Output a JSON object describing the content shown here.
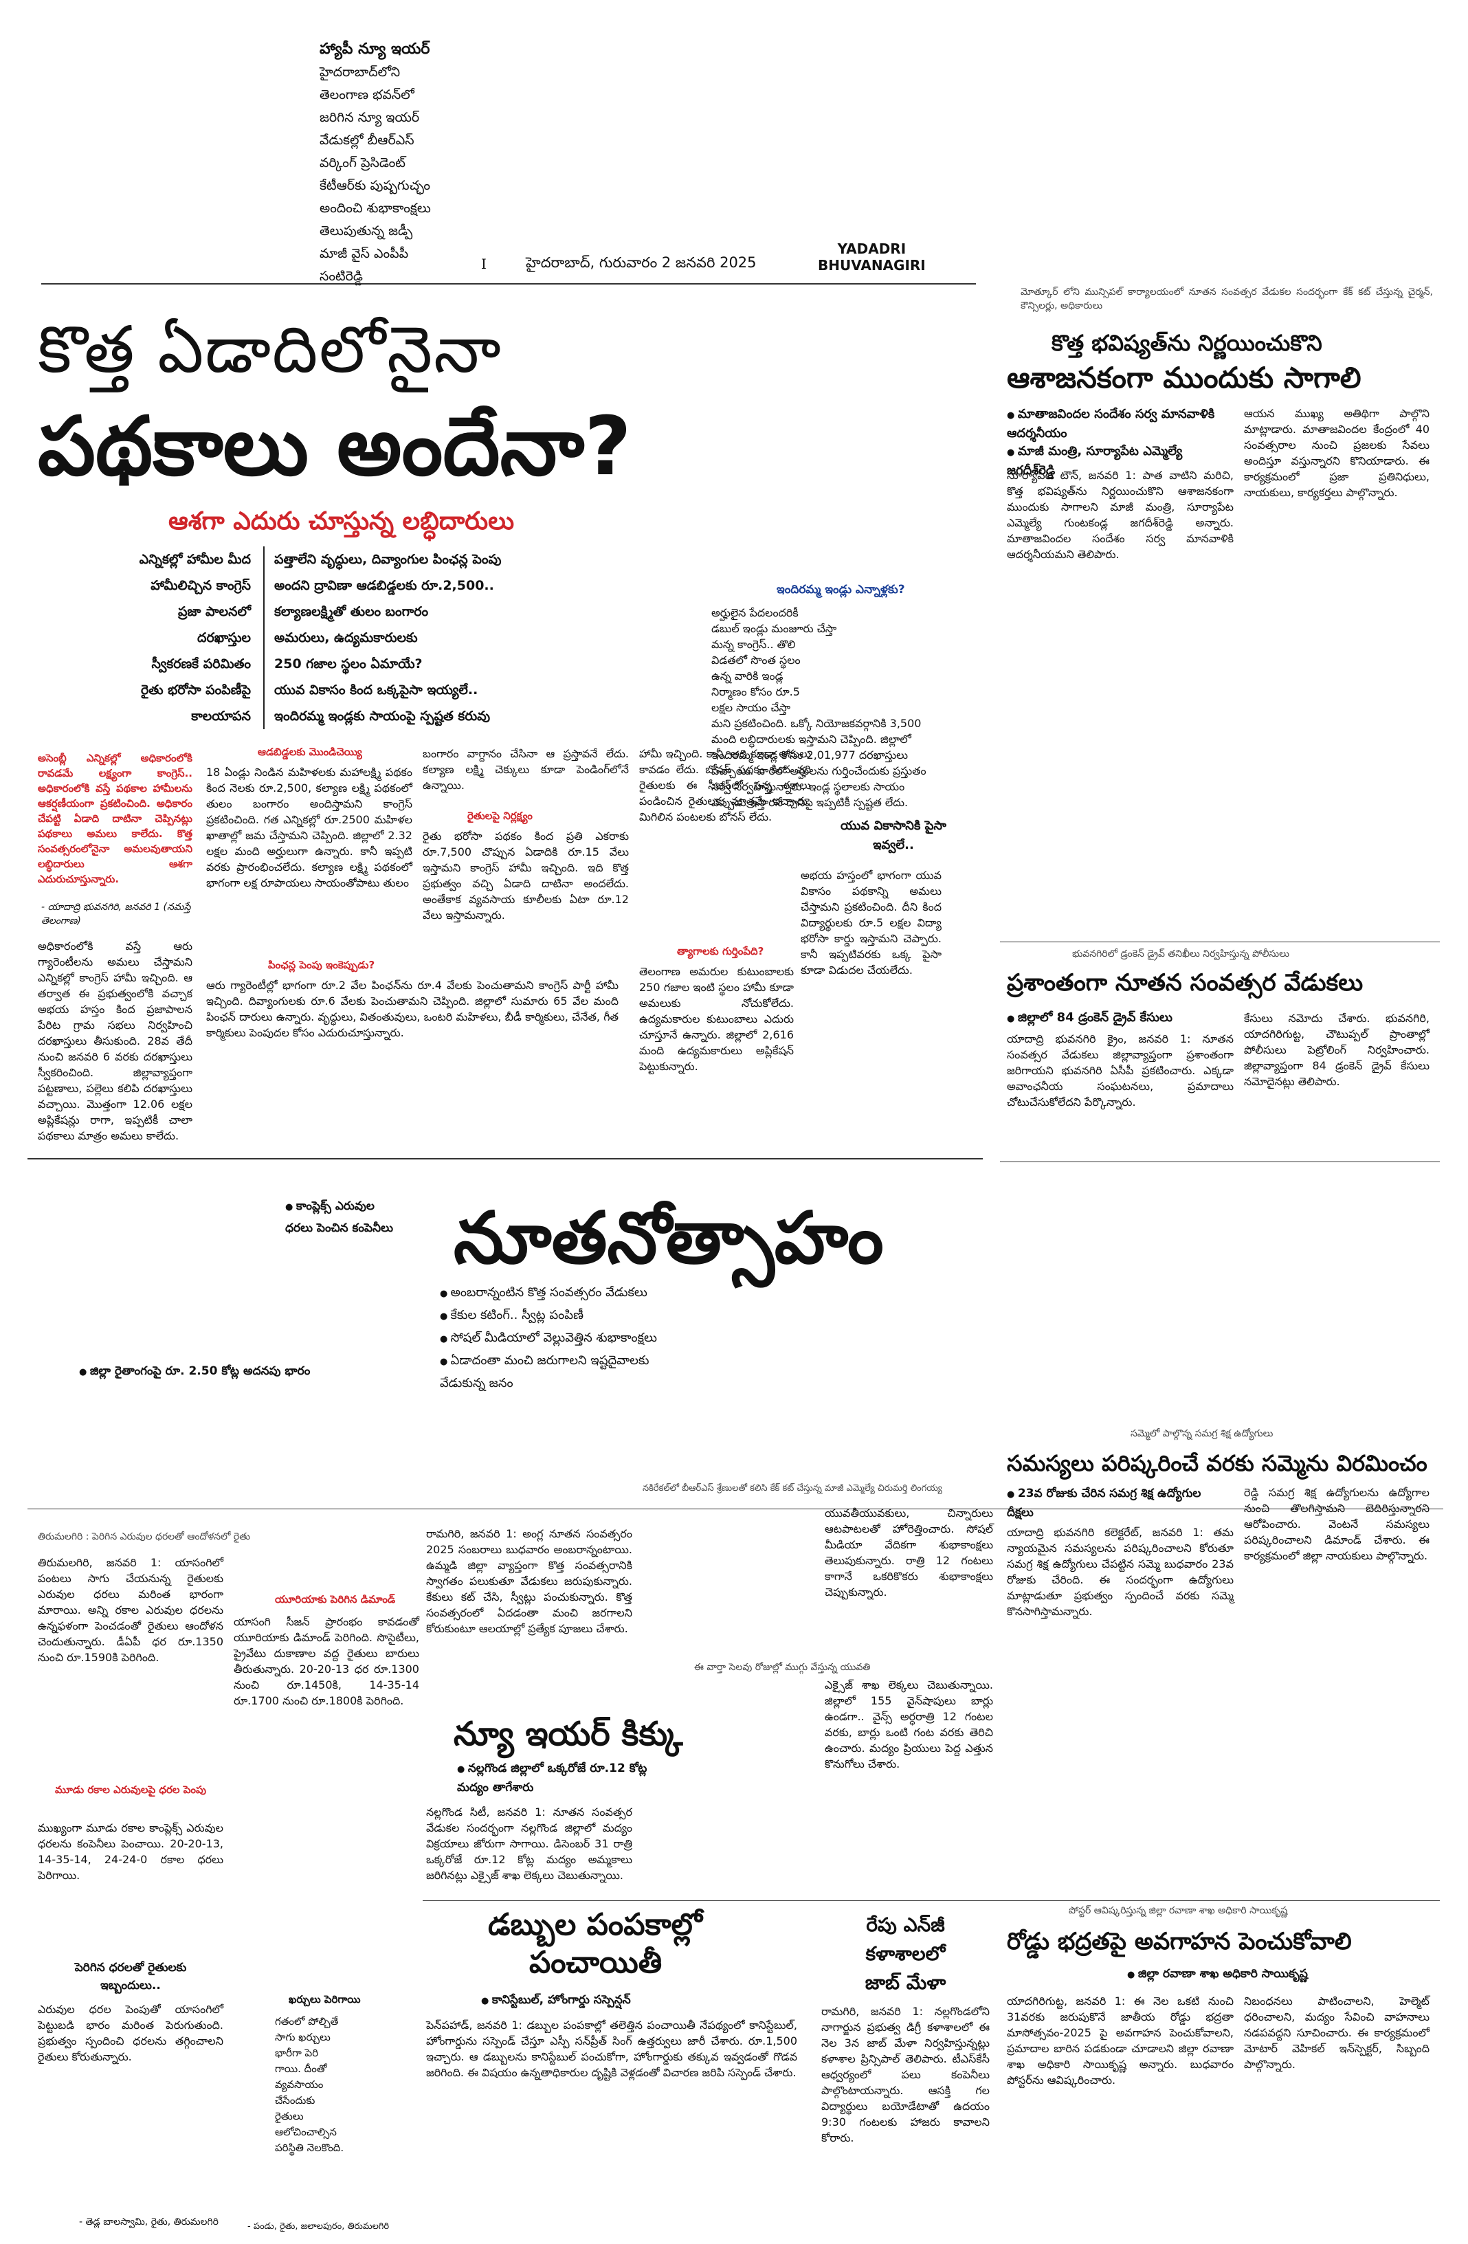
{
  "masthead": {
    "brief_title": "హ్యాపీ న్యూ ఇయర్",
    "brief_lines": [
      "హైదరాబాద్‌లోని",
      "తెలంగాణ భవన్‌లో",
      "జరిగిన న్యూ ఇయర్",
      "వేడుకల్లో బీఆర్ఎస్",
      "వర్కింగ్ ప్రెసిడెంట్",
      "కేటీఆర్‌కు పుష్పగుచ్ఛం",
      "అందించి శుభాకాంక్షలు",
      "తెలుపుతున్న జడ్పీ",
      "మాజీ వైస్ ఎంపీపీ",
      "సంటిరెడ్డి"
    ],
    "page_no": "I",
    "dateline": "హైదరాబాద్, గురువారం 2 జనవరి 2025",
    "edition_line1": "YADADRI",
    "edition_line2": "BHUVANAGIRI"
  },
  "lead": {
    "headline1": "కొత్త ఏడాదిలోనైనా",
    "headline2": "పథకాలు అందేనా?",
    "subhead": "ఆశగా ఎదురు చూస్తున్న లబ్ధిదారులు",
    "table": [
      [
        "ఎన్నికల్లో హామీల మీద",
        "పత్తాలేని వృద్ధులు, దివ్యాంగుల పింఛన్ల పెంపు"
      ],
      [
        "హామీలిచ్చిన కాంగ్రెస్",
        "అందని ద్రావిణా ఆడబిడ్డలకు రూ.2,500.."
      ],
      [
        "ప్రజా పాలనలో",
        "కల్యాణలక్ష్మితో తులం బంగారం"
      ],
      [
        "దరఖాస్తుల",
        "అమరులు, ఉద్యమకారులకు"
      ],
      [
        "స్వీకరణకే పరిమితం",
        "250 గజాల స్థలం ఏమాయే?"
      ],
      [
        "రైతు భరోసా పంపిణీపై",
        "యువ వికాసం కింద ఒక్కపైసా ఇయ్యలే.."
      ],
      [
        "కాలయాపన",
        "ఇందిరమ్మ ఇండ్లకు సాయంపై స్పష్టత కరువు"
      ]
    ],
    "indiramma_kicker": "ఇందిరమ్మ ఇండ్లు ఎన్నాళ్లకు?",
    "indiramma_text": [
      "అర్హులైన పేదలందరికీ",
      "డబుల్ ఇండ్లు మంజూరు చేస్తా",
      "మన్న కాంగ్రెస్.. తొలి",
      "విడతలో సొంత స్థలం",
      "ఉన్న వారికి ఇండ్ల",
      "నిర్మాణం కోసం రూ.5",
      "లక్షల సాయం చేస్తా",
      "మని ప్రకటించింది. ఒక్కో నియోజకవర్గానికి 3,500",
      "మంది లబ్ధిదారులకు ఇస్తామని చెప్పింది. జిల్లాలో",
      "ఇందిరమ్మ ఇండ్ల కోసం 2,01,977 దరఖాస్తులు",
      "వచ్చాయి. వారిలో అర్హులను గుర్తించేందుకు ప్రస్తుతం",
      "సర్వే నిర్వహిస్తున్నారు. ఇండ్ల స్థలాలకు సాయం",
      "ఎప్పుడు ఇస్తారనే దానిపై ఇప్పటికీ స్పష్టత లేదు."
    ],
    "red_intro": "అసెంబ్లీ ఎన్నికల్లో అధికారంలోకి రావడమే లక్ష్యంగా కాంగ్రెస్.. అధికారంలోకి వస్తే పథకాల హామీలను ఆకర్షణీయంగా ప్రకటించింది. అధికారం చేపట్టి ఏడాది దాటినా చెప్పినట్లు పథకాలు అమలు కాలేదు. కొత్త సంవత్సరంలోనైనా అమలవుతాయని లబ్ధిదారులు ఆశగా ఎదురుచూస్తున్నారు.",
    "red_byline": "- యాదాద్రి భువనగిరి, జనవరి 1 (నమస్తే తెలంగాణ)",
    "col1_text": "అధికారంలోకి వస్తే ఆరు గ్యారెంటీలను అమలు చేస్తామని ఎన్నికల్లో కాంగ్రెస్ హామీ ఇచ్చింది. ఆ తర్వాత ఈ ప్రభుత్వంలోకి వచ్చాక అభయ హస్తం కింద ప్రజాపాలన పేరిట గ్రామ సభలు నిర్వహించి దరఖాస్తులు తీసుకుంది. 28వ తేదీ నుంచి జనవరి 6 వరకు దరఖాస్తులు స్వీకరించింది. జిల్లావ్యాప్తంగా పట్టణాలు, పల్లెలు కలిపి దరఖాస్తులు వచ్చాయి. మొత్తంగా 12.06 లక్షల అప్లికేషన్లు రాగా, ఇప్పటికీ చాలా పథకాలు మాత్రం అమలు కాలేదు.",
    "col2_kicker": "ఆడబిడ్డలకు మొండిచెయ్యి",
    "col2_text": "18 ఏండ్లు నిండిన మహిళలకు మహాలక్ష్మి పథకం కింద నెలకు రూ.2,500, కల్యాణ లక్ష్మి పథకంలో తులం బంగారం అందిస్తామని కాంగ్రెస్ ప్రకటించింది. గత ఎన్నికల్లో రూ.2500 మహిళల ఖాతాల్లో జమ చేస్తామని చెప్పింది. జిల్లాలో 2.32 లక్షల మంది అర్హులుగా ఉన్నారు. కానీ ఇప్పటి వరకు ప్రారంభించలేదు. కల్యాణ లక్ష్మి పథకంలో భాగంగా లక్ష రూపాయలు సాయంతోపాటు తులం",
    "col3_text": "బంగారం వాగ్దానం చేసినా ఆ ప్రస్తావనే లేదు. కల్యాణ లక్ష్మి చెక్కులు కూడా పెండింగ్‌లోనే ఉన్నాయి.",
    "rythu_kicker": "రైతులపై నిర్లక్ష్యం",
    "rythu_text": "రైతు భరోసా పథకం కింద ప్రతి ఎకరాకు రూ.7,500 చొప్పున ఏడాదికి రూ.15 వేలు ఇస్తామని కాంగ్రెస్ హామీ ఇచ్చింది. ఇది కొత్త ప్రభుత్వం వచ్చి ఏడాది దాటినా అందలేదు. అంతేకాక వ్యవసాయ కూలీలకు ఏటా రూ.12 వేలు ఇస్తామన్నారు.",
    "col4_text": "హామీ ఇచ్చింది. కానీ, అది కూడా అమలు కావడం లేదు. బోనస్ పథకం కింద వరి రైతులకు ఈ సీజన్‌లో సన్న రకాలు పండించిన రైతులకు మాత్రమే ఇచ్చారు. మిగిలిన పంటలకు బోనస్ లేదు.",
    "pension_kicker": "పింఛన్ల పెంపు ఇంకెప్పుడు?",
    "pension_text": "ఆరు గ్యారెంటీల్లో భాగంగా రూ.2 వేల పింఛన్‌ను రూ.4 వేలకు పెంచుతామని కాంగ్రెస్ పార్టీ హామీ ఇచ్చింది. దివ్యాంగులకు రూ.6 వేలకు పెంచుతామని చెప్పింది. జిల్లాలో సుమారు 65 వేల మంది పింఛన్ దారులు ఉన్నారు. వృద్ధులు, వితంతువులు, ఒంటరి మహిళలు, బీడీ కార్మికులు, చేనేత, గీత కార్మికులు పెంపుదల కోసం ఎదురుచూస్తున్నారు.",
    "yuva_kicker": "యువ వికాసానికి పైసా ఇవ్వలే..",
    "yuva_text": "అభయ హస్తంలో భాగంగా యువ వికాసం పథకాన్ని అమలు చేస్తామని ప్రకటించింది. దీని కింద విద్యార్థులకు రూ.5 లక్షల విద్యా భరోసా కార్డు ఇస్తామని చెప్పారు. కానీ ఇప్పటివరకు ఒక్క పైసా కూడా విడుదల చేయలేదు.",
    "martyr_kicker": "త్యాగాలకు గుర్తింపేది?",
    "martyr_text": "తెలంగాణ అమరుల కుటుంబాలకు 250 గజాల ఇంటి స్థలం హామీ కూడా అమలుకు నోచుకోలేదు. ఉద్యమకారుల కుటుంబాలు ఎదురు చూస్తూనే ఉన్నారు. జిల్లాలో 2,616 మంది ఉద్యమకారులు అప్లికేషన్ పెట్టుకున్నారు."
  },
  "right_top": {
    "caption": "మోత్కూర్ లోని మున్సిపల్ కార్యాలయంలో నూతన సంవత్సర వేడుకల సందర్భంగా కేక్ కట్ చేస్తున్న చైర్మన్, కౌన్సిలర్లు, అధికారులు",
    "headline1": "కొత్త భవిష్యత్‌ను నిర్ణయించుకొని",
    "headline2": "ఆశాజనకంగా ముందుకు సాగాలి",
    "bullets": [
      "మాతాజవిందల సందేశం సర్వ మానవాళికి ఆదర్శనీయం",
      "మాజీ మంత్రి, సూర్యాపేట ఎమ్మెల్యే జగదీశ్‌రెడ్డి"
    ],
    "text_left": "సూర్యాపేట టౌన్, జనవరి 1: పాత వాటిని మరిచి, కొత్త భవిష్యత్‌ను నిర్ణయించుకొని ఆశాజనకంగా ముందుకు సాగాలని మాజీ మంత్రి, సూర్యాపేట ఎమ్మెల్యే గుంటకండ్ల జగదీశ్‌రెడ్డి అన్నారు. మాతాజవిందల సందేశం సర్వ మానవాళికి ఆదర్శనీయమని తెలిపారు.",
    "text_right": "ఆయన ముఖ్య అతిథిగా పాల్గొని మాట్లాడారు. మాతాజవిందల కేంద్రంలో 40 సంవత్సరాల నుంచి ప్రజలకు సేవలు అందిస్తూ వస్తున్నారని కొనియాడారు. ఈ కార్యక్రమంలో ప్రజా ప్రతినిధులు, నాయకులు, కార్యకర్తలు పాల్గొన్నారు."
  },
  "right_mid": {
    "caption": "భువనగిరిలో డ్రంకెన్ డ్రైవ్ తనిఖీలు నిర్వహిస్తున్న పోలీసులు",
    "headline": "ప్రశాంతంగా నూతన సంవత్సర వేడుకలు",
    "bullet": "జిల్లాలో 84 డ్రంకెన్ డ్రైవ్ కేసులు",
    "text_left": "యాదాద్రి భువనగిరి క్రైం, జనవరి 1: నూతన సంవత్సర వేడుకలు జిల్లావ్యాప్తంగా ప్రశాంతంగా జరిగాయని భువనగిరి ఏసీపీ ప్రకటించారు. ఎక్కడా అవాంఛనీయ సంఘటనలు, ప్రమాదాలు చోటుచేసుకోలేదని పేర్కొన్నారు.",
    "text_right": "కేసులు నమోదు చేశారు. భువనగిరి, యాదగిరిగుట్ట, చౌటుప్పల్ ప్రాంతాల్లో పోలీసులు పెట్రోలింగ్ నిర్వహించారు. జిల్లావ్యాప్తంగా 84 డ్రంకెన్ డ్రైవ్ కేసులు నమోదైనట్లు తెలిపారు."
  },
  "feature": {
    "left_bullets": [
      "కాంప్లెక్స్ ఎరువుల",
      "ధరలు పెంచిన కంపెనీలు"
    ],
    "left_bullet2": "జిల్లా రైతాంగంపై రూ. 2.50 కోట్ల అదనపు భారం",
    "headline": "నూతనోత్సాహం",
    "bullets": [
      "అంబరాన్నంటిన కొత్త సంవత్సరం వేడుకలు",
      "కేకుల కటింగ్.. స్వీట్ల పంపిణీ",
      "సోషల్ మీడియాలో వెల్లువెత్తిన శుభాకాంక్షలు",
      "ఏడాదంతా మంచి జరుగాలని ఇష్టదైవాలకు వేడుకున్న జనం"
    ],
    "text": "రామగిరి, జనవరి 1: అంగ్ల నూతన సంవత్సరం 2025 సంబరాలు బుధవారం అంబరాన్నంటాయి. ఉమ్మడి జిల్లా వ్యాప్తంగా కొత్త సంవత్సరానికి స్వాగతం పలుకుతూ వేడుకలు జరుపుకున్నారు. కేకులు కట్ చేసి, స్వీట్లు పంచుకున్నారు. కొత్త సంవత్సరంలో ఏదడంతా మంచి జరగాలని కోరుకుంటూ ఆలయాల్లో ప్రత్యేక పూజలు చేశారు.",
    "text_right": "యువతీయువకులు, చిన్నారులు ఆటపాటలతో హోరెత్తించారు. సోషల్ మీడియా వేదికగా శుభాకాంక్షలు తెలుపుకున్నారు. రాత్రి 12 గంటలు కాగానే ఒకరికొకరు శుభాకాంక్షలు చెప్పుకున్నారు.",
    "caption": "ఈ వార్తా సెలవు రోజుల్లో ముగ్గు వేస్తున్న యువతి"
  },
  "fertilizer": {
    "caption": "తిరుమలగిరి : పెరిగిన ఎరువుల ధరలతో ఆందోళనలో రైతు",
    "text1": "తిరుమలగిరి, జనవరి 1: యాసంగిలో పంటలు సాగు చేయనున్న రైతులకు ఎరువుల ధరలు మరింత భారంగా మారాయి. అన్ని రకాల ఎరువుల ధరలను ఉన్నఫళంగా పెంచడంతో రైతులు ఆందోళన చెందుతున్నారు. డీఏపీ ధర రూ.1350 నుంచి రూ.1590కి పెరిగింది.",
    "kicker1": "మూడు రకాల ఎరువులపై ధరల పెంపు",
    "text2": "ముఖ్యంగా మూడు రకాల కాంప్లెక్స్ ఎరువుల ధరలను కంపెనీలు పెంచాయి. 20-20-13, 14-35-14, 24-24-0 రకాల ధరలు పెరిగాయి.",
    "kicker2": "పెరిగిన ధరలతో రైతులకు ఇబ్బందులు..",
    "text3": "ఎరువుల ధరల పెంపుతో యాసంగిలో పెట్టుబడి భారం మరింత పెరుగుతుంది. ప్రభుత్వం స్పందించి ధరలను తగ్గించాలని రైతులు కోరుతున్నారు.",
    "byline": "- తెడ్ల బాలస్వామి, రైతు, తిరుమలగిరి",
    "kicker3": "యూరియాకు పెరిగిన డిమాండ్",
    "text4": "యాసంగి సీజన్ ప్రారంభం కావడంతో యూరియాకు డిమాండ్ పెరిగింది. సొసైటీలు, ప్రైవేటు దుకాణాల వద్ద రైతులు బారులు తీరుతున్నారు. 20-20-13 ధర రూ.1300 నుంచి రూ.1450కి, 14-35-14 రూ.1700 నుంచి రూ.1800కి పెరిగింది.",
    "prices_title": "ఖర్చులు పెరిగాయి",
    "prices": [
      "గతంలో పోల్చితే",
      "సాగు ఖర్చులు",
      "భారీగా పెరి",
      "గాయి. దీంతో",
      "వ్యవసాయం",
      "చేసేందుకు",
      "రైతులు",
      "ఆలోచించాల్సిన",
      "పరిస్థితి నెలకొంది."
    ],
    "prices_byline": "- పండు, రైతు, జలాలపురం, తిరుమలగిరి"
  },
  "beer": {
    "caption": "నకిరేకల్‌లో బీఆర్ఎస్ శ్రేణులతో కలిసి కేక్ కట్ చేస్తున్న మాజీ ఎమ్మెల్యే చిరుమర్తి లింగయ్య",
    "headline": "న్యూ ఇయర్ కిక్కు",
    "bullet": "నల్లగొండ జిల్లాలో ఒక్కరోజే రూ.12 కోట్ల మద్యం తాగేశారు",
    "text": "నల్లగొండ సిటీ, జనవరి 1: నూతన సంవత్సర వేడుకల సందర్భంగా నల్లగొండ జిల్లాలో మద్యం విక్రయాలు జోరుగా సాగాయి. డిసెంబర్ 31 రాత్రి ఒక్కరోజే రూ.12 కోట్ల మద్యం అమ్మకాలు జరిగినట్లు ఎక్సైజ్ శాఖ లెక్కలు చెబుతున్నాయి.",
    "text_right": "ఎక్సైజ్ శాఖ లెక్కలు చెబుతున్నాయి. జిల్లాలో 155 వైన్‌షాపులు బార్లు ఉండగా.. వైన్స్ అర్ధరాత్రి 12 గంటల వరకు, బార్లు ఒంటి గంట వరకు తెరిచి ఉంచారు. మద్యం ప్రియులు పెద్ద ఎత్తున కొనుగోలు చేశారు."
  },
  "samagra": {
    "caption": "సమ్మెలో పాల్గొన్న సమగ్ర శిక్ష ఉద్యోగులు",
    "headline": "సమస్యలు పరిష్కరించే వరకు సమ్మెను విరమించం",
    "bullets": [
      "23వ రోజుకు చేరిన సమగ్ర శిక్ష ఉద్యోగుల దీక్షలు"
    ],
    "text": "యాదాద్రి భువనగిరి కలెక్టరేట్, జనవరి 1: తమ న్యాయమైన సమస్యలను పరిష్కరించాలని కోరుతూ సమగ్ర శిక్ష ఉద్యోగులు చేపట్టిన సమ్మె బుధవారం 23వ రోజుకు చేరింది. ఈ సందర్భంగా ఉద్యోగులు మాట్లాడుతూ ప్రభుత్వం స్పందించే వరకు సమ్మె కొనసాగిస్తామన్నారు.",
    "text_right": "రెడ్డి సమగ్ర శిక్ష ఉద్యోగులను ఉద్యోగాల నుంచి తొలగిస్తామని బెదిరిస్తున్నారని ఆరోపించారు. వెంటనే సమస్యలు పరిష్కరించాలని డిమాండ్ చేశారు. ఈ కార్యక్రమంలో జిల్లా నాయకులు పాల్గొన్నారు."
  },
  "police": {
    "headline1": "డబ్బుల పంపకాల్లో",
    "headline2": "పంచాయితీ",
    "bullet": "కానిస్టేబుల్, హోంగార్డు సస్పెన్షన్",
    "text": "పెన్‌పహాడ్, జనవరి 1: డబ్బుల పంపకాల్లో తలెత్తిన పంచాయితీ నేపథ్యంలో కానిస్టేబుల్, హోంగార్డును సస్పెండ్ చేస్తూ ఎస్పీ సన్‌ప్రీత్ సింగ్ ఉత్తర్వులు జారీ చేశారు. రూ.1,500 ఇచ్చారు. ఆ డబ్బులను కానిస్టేబుల్ పంచుకోగా, హోంగార్డుకు తక్కువ ఇవ్వడంతో గొడవ జరిగింది. ఈ విషయం ఉన్నతాధికారుల దృష్టికి వెళ్లడంతో విచారణ జరిపి సస్పెండ్ చేశారు."
  },
  "jobmela": {
    "headline1": "రేపు ఎన్‌జీ",
    "headline2": "కళాశాలలో",
    "headline3": "జాబ్ మేళా",
    "text": "రామగిరి, జనవరి 1: నల్లగొండలోని నాగార్జున ప్రభుత్వ డిగ్రీ కళాశాలలో ఈ నెల 3న జాబ్ మేళా నిర్వహిస్తున్నట్లు కళాశాల ప్రిన్సిపాల్ తెలిపారు. టీఎస్‌కేసీ ఆధ్వర్యంలో పలు కంపెనీలు పాల్గొంటాయన్నారు. ఆసక్తి గల విద్యార్థులు బయోడేటాతో ఉదయం 9:30 గంటలకు హాజరు కావాలని కోరారు."
  },
  "road": {
    "caption": "పోస్టర్ ఆవిష్కరిస్తున్న జిల్లా రవాణా శాఖ అధికారి సాయికృష్ణ",
    "headline": "రోడ్డు భద్రతపై అవగాహన పెంచుకోవాలి",
    "bullet": "జిల్లా రవాణా శాఖ అధికారి సాయికృష్ణ",
    "text": "యాదగిరిగుట్ట, జనవరి 1: ఈ నెల ఒకటి నుంచి 31వరకు జరుపుకొనే జాతీయ రోడ్డు భద్రతా మాసోత్సవం-2025 పై అవగాహన పెంచుకోవాలని, ప్రమాదాల బారిన పడకుండా చూడాలని జిల్లా రవాణా శాఖ అధికారి సాయికృష్ణ అన్నారు. బుధవారం పోస్టర్‌ను ఆవిష్కరించారు.",
    "text_right": "నిబంధనలు పాటించాలని, హెల్మెట్ ధరించాలని, మద్యం సేవించి వాహనాలు నడపవద్దని సూచించారు. ఈ కార్యక్రమంలో మోటార్ వెహికల్ ఇన్‌స్పెక్టర్, సిబ్బంది పాల్గొన్నారు."
  }
}
